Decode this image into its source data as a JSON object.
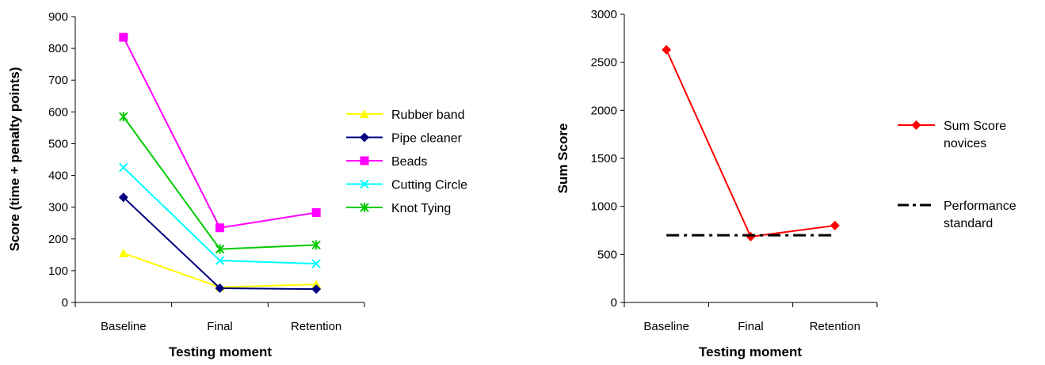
{
  "chart_data": [
    {
      "type": "line",
      "categories": [
        "Baseline",
        "Final",
        "Retention"
      ],
      "xlabel": "Testing moment",
      "ylabel": "Score (time + penalty points)",
      "ylim": [
        0,
        900
      ],
      "yticks": [
        0,
        100,
        200,
        300,
        400,
        500,
        600,
        700,
        800,
        900
      ],
      "grid": false,
      "legend_position": "right",
      "series": [
        {
          "name": "Rubber band",
          "values": [
            155,
            48,
            57
          ],
          "color": "#ffff00",
          "marker": "triangle"
        },
        {
          "name": "Pipe cleaner",
          "values": [
            331,
            45,
            42
          ],
          "color": "#000080",
          "marker": "diamond"
        },
        {
          "name": "Beads",
          "values": [
            835,
            235,
            283
          ],
          "color": "#ff00ff",
          "marker": "square"
        },
        {
          "name": "Cutting Circle",
          "values": [
            425,
            132,
            122
          ],
          "color": "#00ffff",
          "marker": "x"
        },
        {
          "name": "Knot Tying",
          "values": [
            585,
            168,
            181
          ],
          "color": "#00cc00",
          "marker": "star"
        }
      ]
    },
    {
      "type": "line",
      "categories": [
        "Baseline",
        "Final",
        "Retention"
      ],
      "xlabel": "Testing moment",
      "ylabel": "Sum Score",
      "ylim": [
        0,
        3000
      ],
      "yticks": [
        0,
        500,
        1000,
        1500,
        2000,
        2500,
        3000
      ],
      "grid": false,
      "legend_position": "right",
      "series": [
        {
          "name": "Sum Score novices",
          "name_lines": [
            "Sum Score",
            "novices"
          ],
          "values": [
            2630,
            685,
            800
          ],
          "color": "#ff0000",
          "marker": "diamond"
        },
        {
          "name": "Performance standard",
          "name_lines": [
            "Performance",
            "standard"
          ],
          "values": [
            700,
            700,
            700
          ],
          "color": "#000000",
          "marker": "none",
          "dash": "dashdot"
        }
      ]
    }
  ]
}
